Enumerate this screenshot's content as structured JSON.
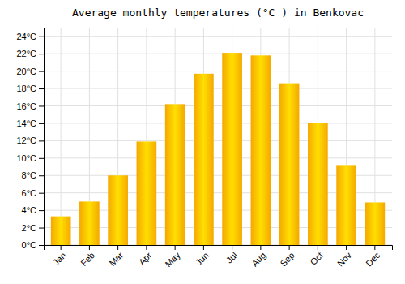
{
  "chart_data": {
    "type": "bar",
    "title": "Average monthly temperatures (°C ) in Benkovac",
    "categories": [
      "Jan",
      "Feb",
      "Mar",
      "Apr",
      "May",
      "Jun",
      "Jul",
      "Aug",
      "Sep",
      "Oct",
      "Nov",
      "Dec"
    ],
    "values": [
      3.3,
      5.0,
      8.0,
      11.9,
      16.2,
      19.7,
      22.1,
      21.8,
      18.6,
      14.0,
      9.2,
      4.9
    ],
    "color": "#F5A800",
    "ylim": [
      0,
      25
    ],
    "yticks": [
      {
        "value": 0,
        "label": "0°C"
      },
      {
        "value": 2,
        "label": "2°C"
      },
      {
        "value": 4,
        "label": "4°C"
      },
      {
        "value": 6,
        "label": "6°C"
      },
      {
        "value": 8,
        "label": "8°C"
      },
      {
        "value": 10,
        "label": "10°C"
      },
      {
        "value": 12,
        "label": "12°C"
      },
      {
        "value": 14,
        "label": "14°C"
      },
      {
        "value": 16,
        "label": "16°C"
      },
      {
        "value": 18,
        "label": "18°C"
      },
      {
        "value": 20,
        "label": "20°C"
      },
      {
        "value": 22,
        "label": "22°C"
      },
      {
        "value": 24,
        "label": "24°C"
      }
    ],
    "grid": true
  }
}
